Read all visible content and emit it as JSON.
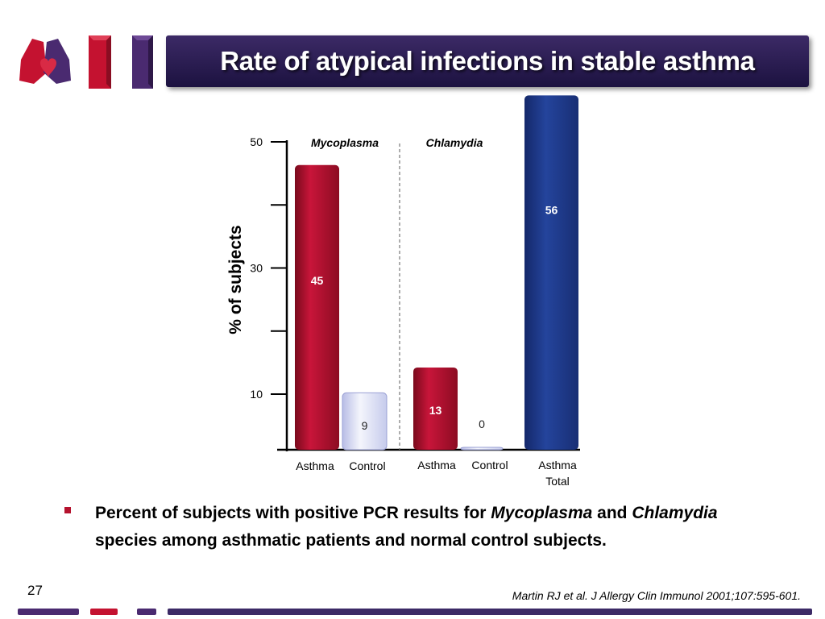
{
  "slide": {
    "title": "Rate of atypical infections in stable asthma",
    "number": "27",
    "citation": "Martin RJ et al. J Allergy Clin Immunol 2001;107:595-601.",
    "bullet": {
      "text1": "Percent of subjects with positive PCR results for ",
      "italic1": "Mycoplasma",
      "text2": " and ",
      "italic2": "Chlamydia",
      "text3": " species among asthmatic patients and normal control subjects."
    }
  },
  "colors": {
    "title_bar": "#2a1d52",
    "asthma_red": "#b5122e",
    "control_light": "#dde0f4",
    "total_blue": "#1e3a8a",
    "bullet": "#b5122e",
    "logo_red": "#c41230",
    "logo_purple": "#4a2a70"
  },
  "chart_data": {
    "type": "bar",
    "ylabel": "% of subjects",
    "ylim": [
      0,
      50
    ],
    "yticks": [
      10,
      30,
      50
    ],
    "groups": [
      {
        "label": "Mycoplasma",
        "bars": [
          {
            "label": "Asthma",
            "value": 45,
            "color_key": "asthma_red"
          },
          {
            "label": "Control",
            "value": 9,
            "color_key": "control_light"
          }
        ]
      },
      {
        "label": "Chlamydia",
        "bars": [
          {
            "label": "Asthma",
            "value": 13,
            "color_key": "asthma_red"
          },
          {
            "label": "Control",
            "value": 0,
            "color_key": "control_light"
          }
        ]
      },
      {
        "label": "",
        "bars": [
          {
            "label": "Asthma Total",
            "value": 56,
            "color_key": "total_blue"
          }
        ]
      }
    ]
  }
}
